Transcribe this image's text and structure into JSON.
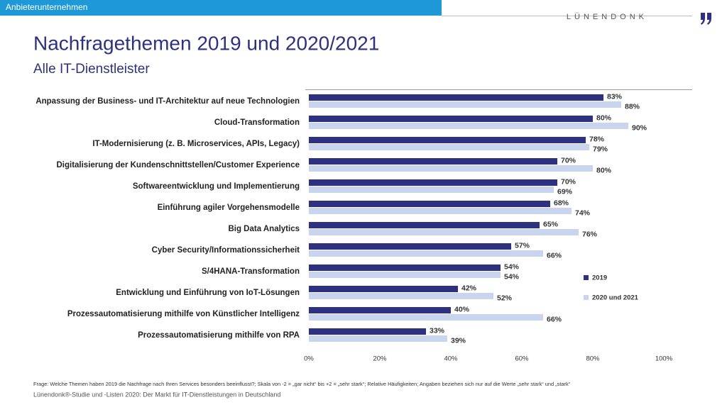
{
  "header_tab": "Anbieterunternehmen",
  "logo": "LÜNENDONK",
  "footnotes": [
    "Frage: Welche Themen haben 2019 die Nachfrage nach Ihren Services besonders beeinflusst?; Skala von -2 = „gar nicht“ bis +2 = „sehr stark“; Relative Häufigkeiten; Angaben beziehen sich nur auf die Werte „sehr stark“ und „stark“",
    "Lünendonk®-Studie und -Listen 2020: Der Markt für IT-Dienstleistungen in Deutschland"
  ],
  "chart_data": {
    "type": "hbar",
    "title": "Nachfragethemen 2019 und 2020/2021",
    "subtitle": "Alle IT-Dienstleister",
    "categories": [
      "Anpassung der Business- und IT-Architektur auf neue Technologien",
      "Cloud-Transformation",
      "IT-Modernisierung (z. B. Microservices, APIs, Legacy)",
      "Digitalisierung der Kundenschnittstellen/Customer Experience",
      "Softwareentwicklung und Implementierung",
      "Einführung agiler Vorgehensmodelle",
      "Big Data Analytics",
      "Cyber Security/Informationssicherheit",
      "S/4HANA-Transformation",
      "Entwicklung und Einführung von IoT-Lösungen",
      "Prozessautomatisierung mithilfe von Künstlicher Intelligenz",
      "Prozessautomatisierung mithilfe von RPA"
    ],
    "series": [
      {
        "name": "2019",
        "color": "#2e3180",
        "values": [
          83,
          80,
          78,
          70,
          70,
          68,
          65,
          57,
          54,
          42,
          40,
          33
        ],
        "value_labels": [
          "83%",
          "80%",
          "78%",
          "70%",
          "70%",
          "68%",
          "65%",
          "57%",
          "54%",
          "42%",
          "40%",
          "33%"
        ]
      },
      {
        "name": "2020 und 2021",
        "color": "#c9d4ef",
        "values": [
          88,
          90,
          79,
          80,
          69,
          74,
          76,
          66,
          54,
          52,
          66,
          39
        ],
        "value_labels": [
          "88%",
          "90%",
          "79%",
          "80%",
          "69%",
          "74%",
          "76%",
          "66%",
          "54%",
          "52%",
          "66%",
          "39%"
        ]
      }
    ],
    "xlim": [
      0,
      100
    ],
    "xticks": [
      {
        "value": 0,
        "label": "0%"
      },
      {
        "value": 20,
        "label": "20%"
      },
      {
        "value": 40,
        "label": "40%"
      },
      {
        "value": 60,
        "label": "60%"
      },
      {
        "value": 80,
        "label": "80%"
      },
      {
        "value": 100,
        "label": "100%"
      }
    ]
  }
}
